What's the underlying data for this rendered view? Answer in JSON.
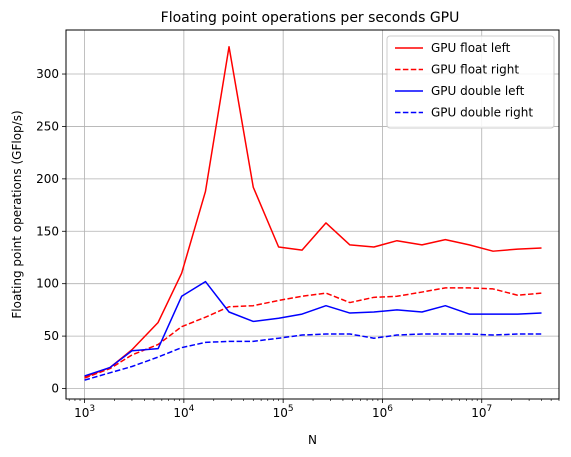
{
  "chart_data": {
    "type": "line",
    "title": "Floating point operations per seconds GPU",
    "xlabel": "N",
    "ylabel": "Floating point operations (GFlop/s)",
    "xscale": "log",
    "xlim": [
      650,
      60000000
    ],
    "ylim": [
      -10,
      342
    ],
    "grid": true,
    "legend_position": "top-right",
    "xticks": [
      {
        "value": 1000,
        "base": "10",
        "exp": "3"
      },
      {
        "value": 10000,
        "base": "10",
        "exp": "4"
      },
      {
        "value": 100000,
        "base": "10",
        "exp": "5"
      },
      {
        "value": 1000000,
        "base": "10",
        "exp": "6"
      },
      {
        "value": 10000000,
        "base": "10",
        "exp": "7"
      }
    ],
    "yticks": [
      0,
      50,
      100,
      150,
      200,
      250,
      300
    ],
    "x": [
      1000,
      1800,
      3000,
      5500,
      9500,
      16500,
      28500,
      50000,
      90000,
      155000,
      270000,
      470000,
      820000,
      1400000,
      2500000,
      4300000,
      7500000,
      13000000,
      23000000,
      40000000
    ],
    "series": [
      {
        "name": "GPU float left",
        "color": "#ff0000",
        "dash": "solid",
        "values": [
          11,
          20,
          37,
          63,
          110,
          188,
          326,
          192,
          135,
          132,
          158,
          137,
          135,
          141,
          137,
          142,
          137,
          131,
          133,
          134
        ]
      },
      {
        "name": "GPU float right",
        "color": "#ff0000",
        "dash": "dashed",
        "values": [
          10,
          19,
          32,
          42,
          59,
          68,
          78,
          79,
          84,
          88,
          91,
          82,
          87,
          88,
          92,
          96,
          96,
          95,
          89,
          91
        ]
      },
      {
        "name": "GPU double left",
        "color": "#0000ff",
        "dash": "solid",
        "values": [
          12,
          20,
          36,
          38,
          88,
          102,
          73,
          64,
          67,
          71,
          79,
          72,
          73,
          75,
          73,
          79,
          71,
          71,
          71,
          72
        ]
      },
      {
        "name": "GPU double right",
        "color": "#0000ff",
        "dash": "dashed",
        "values": [
          8,
          15,
          21,
          30,
          39,
          44,
          45,
          45,
          48,
          51,
          52,
          52,
          48,
          51,
          52,
          52,
          52,
          51,
          52,
          52
        ]
      }
    ]
  }
}
